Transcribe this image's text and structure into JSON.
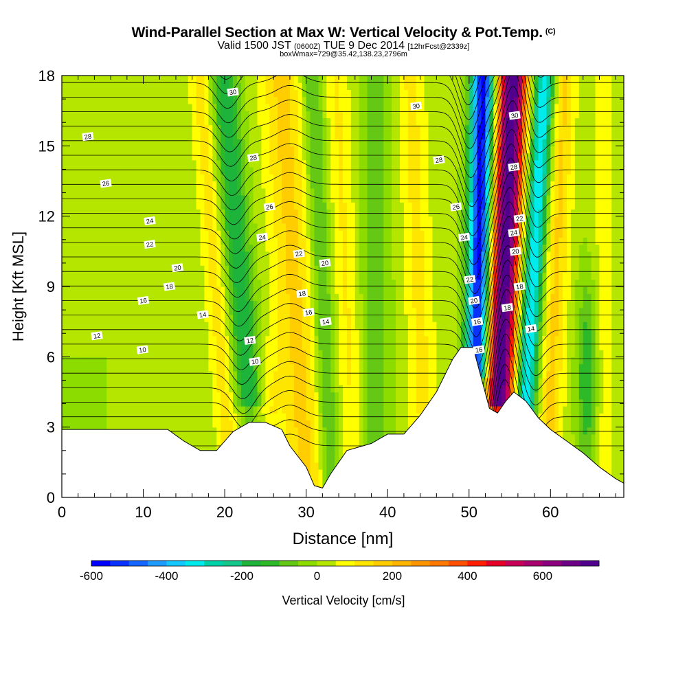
{
  "header": {
    "title": "Wind-Parallel Section at Max W: Vertical Velocity & Pot.Temp.",
    "title_unit": "(C)",
    "valid_prefix": "Valid 1500 JST",
    "valid_utc": "(0600Z)",
    "valid_date": "TUE 9 Dec 2014",
    "forecast": "[12hrFcst@2339z]",
    "box_info": "boxWmax=729@35.42,138.23,2796m"
  },
  "chart_data": {
    "type": "heatmap",
    "xlabel": "Distance [nm]",
    "ylabel": "Height [Kft MSL]",
    "xlim": [
      0,
      69
    ],
    "ylim": [
      0,
      18
    ],
    "x_ticks": [
      0,
      10,
      20,
      30,
      40,
      50,
      60
    ],
    "y_ticks": [
      0,
      3,
      6,
      9,
      12,
      15,
      18
    ],
    "colorbar": {
      "label": "Vertical Velocity [cm/s]",
      "ticks": [
        -600,
        -400,
        -200,
        0,
        200,
        400,
        600
      ],
      "min": -600,
      "max": 750,
      "step": 50,
      "colors": [
        "#0000ff",
        "#0a32ff",
        "#1466ff",
        "#1e9bff",
        "#14c8ff",
        "#00ebeb",
        "#00d2a8",
        "#14c88c",
        "#1eb43c",
        "#2db928",
        "#64c814",
        "#8cdc00",
        "#b4e600",
        "#ffff00",
        "#ffe600",
        "#ffcd00",
        "#ffb400",
        "#ff9600",
        "#ff7800",
        "#ff5000",
        "#ff1e00",
        "#e60028",
        "#c8005a",
        "#aa006e",
        "#8c007d",
        "#6e0087",
        "#50008c"
      ]
    },
    "terrain_kft": [
      [
        0,
        2.9
      ],
      [
        13,
        2.9
      ],
      [
        15,
        2.4
      ],
      [
        17,
        2
      ],
      [
        19,
        2
      ],
      [
        21,
        2.8
      ],
      [
        23,
        3.2
      ],
      [
        25,
        3.2
      ],
      [
        27,
        2.9
      ],
      [
        28,
        2.2
      ],
      [
        30,
        1.3
      ],
      [
        31,
        0.5
      ],
      [
        32,
        0.4
      ],
      [
        33,
        1
      ],
      [
        35,
        2
      ],
      [
        38,
        2.3
      ],
      [
        40,
        2.7
      ],
      [
        42,
        2.7
      ],
      [
        44,
        3.5
      ],
      [
        46,
        4.5
      ],
      [
        48,
        5.9
      ],
      [
        49,
        6.4
      ],
      [
        50.5,
        6.4
      ],
      [
        51.5,
        5.1
      ],
      [
        52.5,
        3.8
      ],
      [
        53.5,
        3.6
      ],
      [
        54.5,
        4.1
      ],
      [
        55.5,
        4.5
      ],
      [
        57,
        4.1
      ],
      [
        58.5,
        3.4
      ],
      [
        60,
        2.9
      ],
      [
        62,
        2.4
      ],
      [
        64,
        1.9
      ],
      [
        66,
        1.3
      ],
      [
        68,
        0.8
      ],
      [
        69,
        0.6
      ]
    ],
    "velocity_features": [
      {
        "label": "updraft-core",
        "x": 55,
        "max_cms": 729
      },
      {
        "label": "downdraft-core",
        "x": 51,
        "min_cms": -600
      },
      {
        "label": "updraft-band-1",
        "x": 28,
        "max_cms": 150
      },
      {
        "label": "downdraft-band-1",
        "x": 21,
        "min_cms": -200
      }
    ],
    "contour_labels": [
      {
        "text": "30",
        "x": 21,
        "y": 17.3
      },
      {
        "text": "30",
        "x": 43.5,
        "y": 16.7
      },
      {
        "text": "30",
        "x": 55.6,
        "y": 16.3
      },
      {
        "text": "28",
        "x": 3.2,
        "y": 15.4
      },
      {
        "text": "28",
        "x": 23.5,
        "y": 14.5
      },
      {
        "text": "28",
        "x": 46.3,
        "y": 14.4
      },
      {
        "text": "28",
        "x": 55.5,
        "y": 14.1
      },
      {
        "text": "26",
        "x": 5.4,
        "y": 13.4
      },
      {
        "text": "26",
        "x": 25.5,
        "y": 12.4
      },
      {
        "text": "26",
        "x": 48.4,
        "y": 12.4
      },
      {
        "text": "24",
        "x": 10.8,
        "y": 11.8
      },
      {
        "text": "24",
        "x": 24.6,
        "y": 11.1
      },
      {
        "text": "24",
        "x": 49.4,
        "y": 11.1
      },
      {
        "text": "24",
        "x": 55.5,
        "y": 11.3
      },
      {
        "text": "22",
        "x": 10.8,
        "y": 10.8
      },
      {
        "text": "22",
        "x": 29.1,
        "y": 10.4
      },
      {
        "text": "22",
        "x": 56.2,
        "y": 11.9
      },
      {
        "text": "22",
        "x": 50.1,
        "y": 9.3
      },
      {
        "text": "20",
        "x": 14.2,
        "y": 9.8
      },
      {
        "text": "20",
        "x": 32.3,
        "y": 10
      },
      {
        "text": "20",
        "x": 55.7,
        "y": 10.5
      },
      {
        "text": "20",
        "x": 50.6,
        "y": 8.4
      },
      {
        "text": "18",
        "x": 13.2,
        "y": 9
      },
      {
        "text": "18",
        "x": 29.5,
        "y": 8.7
      },
      {
        "text": "18",
        "x": 56.2,
        "y": 9
      },
      {
        "text": "18",
        "x": 54.7,
        "y": 8.1
      },
      {
        "text": "16",
        "x": 10,
        "y": 8.4
      },
      {
        "text": "16",
        "x": 30.3,
        "y": 7.9
      },
      {
        "text": "16",
        "x": 51,
        "y": 7.5
      },
      {
        "text": "16",
        "x": 51.2,
        "y": 6.3
      },
      {
        "text": "14",
        "x": 17.3,
        "y": 7.8
      },
      {
        "text": "14",
        "x": 32.4,
        "y": 7.5
      },
      {
        "text": "14",
        "x": 57.6,
        "y": 7.2
      },
      {
        "text": "12",
        "x": 4.3,
        "y": 6.9
      },
      {
        "text": "12",
        "x": 23.1,
        "y": 6.7
      },
      {
        "text": "10",
        "x": 9.9,
        "y": 6.3
      },
      {
        "text": "10",
        "x": 23.7,
        "y": 5.8
      }
    ]
  }
}
